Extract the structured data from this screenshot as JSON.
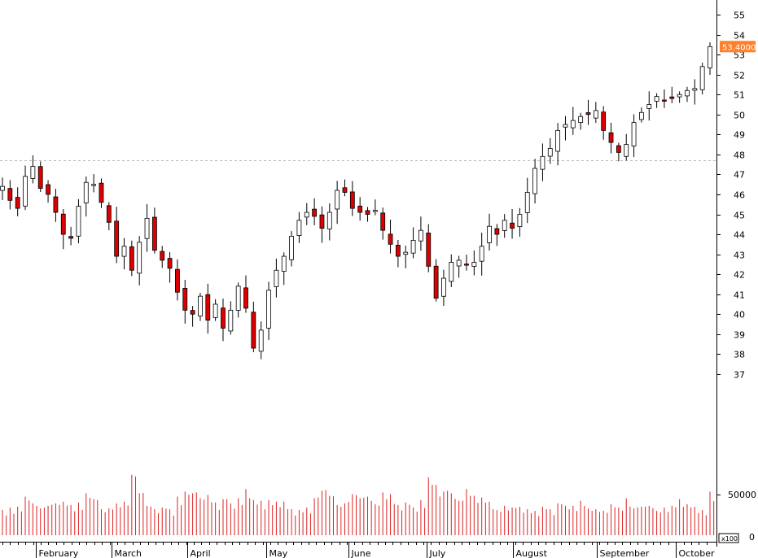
{
  "chart_data": {
    "type": "candlestick",
    "months": [
      "February",
      "March",
      "April",
      "May",
      "June",
      "July",
      "August",
      "September",
      "October"
    ],
    "y_ticks": [
      37,
      38,
      39,
      40,
      41,
      42,
      43,
      44,
      45,
      46,
      47,
      48,
      49,
      50,
      51,
      52,
      53,
      54,
      55
    ],
    "ylim": [
      36.2,
      55.5
    ],
    "reference_line": 47.7,
    "last_price_label": "53.4000",
    "last_price": 53.4,
    "volume_tick_label": "50000",
    "volume_zero_label": "0",
    "volume_multiplier_label": "x100",
    "volume_ylim": [
      0,
      95000
    ],
    "colors": {
      "up": "#ffffff",
      "down": "#dd0000",
      "outline": "#000000",
      "volume": "#dd2222",
      "ref_line": "#bbbbbb",
      "price_badge": "#ff7f2a"
    },
    "closes": [
      46.4,
      45.7,
      45.3,
      46.9,
      47.4,
      46.3,
      46.0,
      45.1,
      44.0,
      43.8,
      45.4,
      46.6,
      46.5,
      45.6,
      44.6,
      42.9,
      43.4,
      42.2,
      43.6,
      44.8,
      43.2,
      42.7,
      42.3,
      41.1,
      40.2,
      40.0,
      40.9,
      39.7,
      40.5,
      39.3,
      40.2,
      41.4,
      40.3,
      38.3,
      39.2,
      41.2,
      42.2,
      42.9,
      43.9,
      44.7,
      45.1,
      44.9,
      44.3,
      45.1,
      46.2,
      46.1,
      45.3,
      45.1,
      45.0,
      45.2,
      44.2,
      43.5,
      42.9,
      43.1,
      43.7,
      44.2,
      42.4,
      40.8,
      41.8,
      42.6,
      42.7,
      42.5,
      42.6,
      43.4,
      44.4,
      44.0,
      44.7,
      44.3,
      45.0,
      46.1,
      47.3,
      47.9,
      48.3,
      49.2,
      49.5,
      49.7,
      49.9,
      50.0,
      50.2,
      49.2,
      48.6,
      48.1,
      48.5,
      49.6,
      50.1,
      50.5,
      50.9,
      50.7,
      50.8,
      51.0,
      51.2,
      51.3,
      52.4,
      53.4
    ],
    "volumes": [
      30000,
      33000,
      34000,
      46000,
      38000,
      32000,
      35000,
      38000,
      40000,
      36000,
      39000,
      50000,
      43000,
      31000,
      32000,
      38000,
      40000,
      72000,
      50000,
      35000,
      31000,
      33000,
      31000,
      46000,
      52000,
      50000,
      44000,
      48000,
      39000,
      43000,
      38000,
      44000,
      55000,
      42000,
      41000,
      42000,
      40000,
      40000,
      31000,
      30000,
      33000,
      44000,
      53000,
      47000,
      36000,
      38000,
      49000,
      44000,
      46000,
      37000,
      51000,
      49000,
      36000,
      39000,
      33000,
      42000,
      69000,
      60000,
      52000,
      50000,
      41000,
      55000,
      47000,
      45000,
      40000,
      30000,
      35000,
      33000,
      34000,
      31000,
      29000,
      34000,
      31000,
      38000,
      35000,
      35000,
      41000,
      32000,
      31000,
      29000,
      37000,
      33000,
      44000,
      32000,
      34000,
      35000,
      29000,
      33000,
      35000,
      43000,
      37000,
      34000,
      30000,
      52000
    ]
  }
}
